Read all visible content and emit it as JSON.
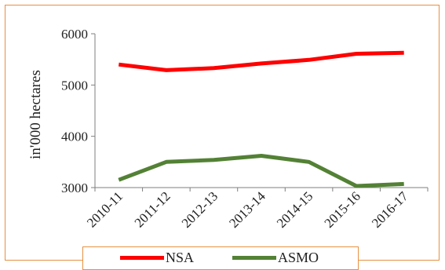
{
  "chart_data": {
    "type": "line",
    "categories": [
      "2010-11",
      "2011-12",
      "2012-13",
      "2013-14",
      "2014-15",
      "2015-16",
      "2016-17"
    ],
    "series": [
      {
        "name": "NSA",
        "values": [
          5400,
          5290,
          5330,
          5420,
          5490,
          5610,
          5630
        ],
        "color": "#ff0000"
      },
      {
        "name": "ASMO",
        "values": [
          3150,
          3500,
          3540,
          3620,
          3500,
          3030,
          3070
        ],
        "color": "#538135"
      }
    ],
    "ylabel": "in'000 hectares",
    "ylim": [
      3000,
      6000
    ],
    "yticks": [
      3000,
      4000,
      5000,
      6000
    ],
    "grid": false,
    "legend": "bottom"
  }
}
